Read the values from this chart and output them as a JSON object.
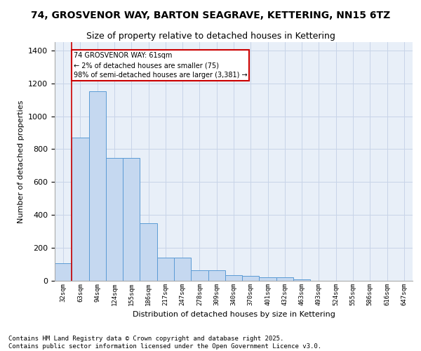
{
  "title1": "74, GROSVENOR WAY, BARTON SEAGRAVE, KETTERING, NN15 6TZ",
  "title2": "Size of property relative to detached houses in Kettering",
  "xlabel": "Distribution of detached houses by size in Kettering",
  "ylabel": "Number of detached properties",
  "categories": [
    "32sqm",
    "63sqm",
    "94sqm",
    "124sqm",
    "155sqm",
    "186sqm",
    "217sqm",
    "247sqm",
    "278sqm",
    "309sqm",
    "340sqm",
    "370sqm",
    "401sqm",
    "432sqm",
    "463sqm",
    "493sqm",
    "524sqm",
    "555sqm",
    "586sqm",
    "616sqm",
    "647sqm"
  ],
  "values": [
    108,
    870,
    1150,
    745,
    745,
    350,
    140,
    140,
    65,
    65,
    35,
    30,
    20,
    20,
    10,
    0,
    0,
    0,
    0,
    0,
    0
  ],
  "bar_color": "#c5d8f0",
  "bar_edge_color": "#5b9bd5",
  "grid_color": "#c8d4e8",
  "bg_color": "#e8eff8",
  "annotation_box_color": "#cc0000",
  "vline_color": "#cc0000",
  "vline_x": 0.5,
  "annotation_text": "74 GROSVENOR WAY: 61sqm\n← 2% of detached houses are smaller (75)\n98% of semi-detached houses are larger (3,381) →",
  "ylim": [
    0,
    1450
  ],
  "yticks": [
    0,
    200,
    400,
    600,
    800,
    1000,
    1200,
    1400
  ],
  "title1_fontsize": 10,
  "title2_fontsize": 9,
  "footnote": "Contains HM Land Registry data © Crown copyright and database right 2025.\nContains public sector information licensed under the Open Government Licence v3.0.",
  "footnote_fontsize": 6.5
}
